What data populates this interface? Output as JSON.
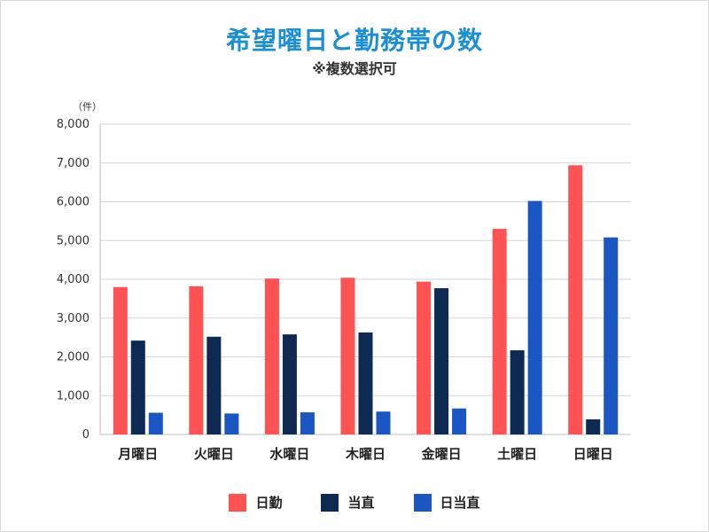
{
  "title": "希望曜日と勤務帯の数",
  "subtitle": "※複数選択可",
  "unit_label": "（件）",
  "chart_data": {
    "type": "bar",
    "categories": [
      "月曜日",
      "火曜日",
      "水曜日",
      "木曜日",
      "金曜日",
      "土曜日",
      "日曜日"
    ],
    "series": [
      {
        "name": "日勤",
        "color": "#ff5252",
        "values": [
          3800,
          3820,
          4020,
          4040,
          3940,
          5300,
          6940
        ]
      },
      {
        "name": "当直",
        "color": "#0d2a52",
        "values": [
          2420,
          2520,
          2580,
          2630,
          3770,
          2170,
          390
        ]
      },
      {
        "name": "日当直",
        "color": "#1a56c4",
        "values": [
          560,
          540,
          570,
          590,
          670,
          6020,
          5080
        ]
      }
    ],
    "ylim": [
      0,
      8000
    ],
    "yticks": [
      0,
      1000,
      2000,
      3000,
      4000,
      5000,
      6000,
      7000,
      8000
    ],
    "ytick_labels": [
      "0",
      "1,000",
      "2,000",
      "3,000",
      "4,000",
      "5,000",
      "6,000",
      "7,000",
      "8,000"
    ],
    "grid": true,
    "legend_position": "bottom-center"
  }
}
